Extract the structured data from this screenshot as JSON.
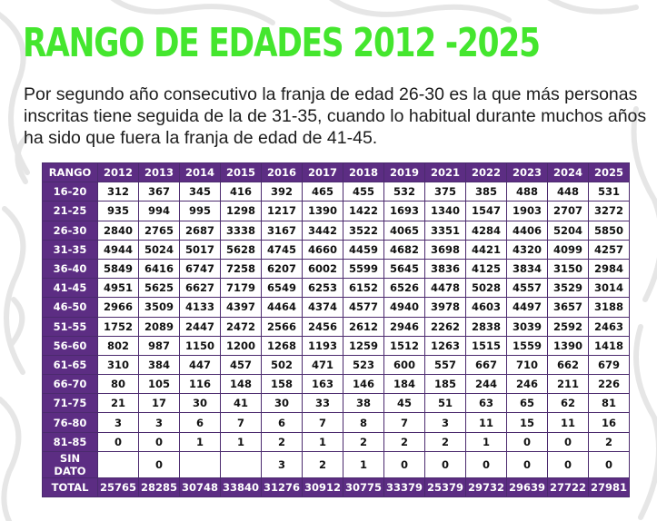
{
  "title": "RANGO DE EDADES 2012 -2025",
  "intro_lines": [
    "Por segundo año consecutivo la franja de edad 26-30 es la que más personas",
    "inscritas tiene seguida de la de 31-35, cuando lo habitual durante muchos años",
    "ha sido que fuera la franja de edad de 41-45."
  ],
  "colors": {
    "title": "#44e62e",
    "table_header": "#5c2d83"
  },
  "table": {
    "corner_label": "RANGO",
    "years": [
      "2012",
      "2013",
      "2014",
      "2015",
      "2016",
      "2017",
      "2018",
      "2019",
      "2021",
      "2022",
      "2023",
      "2024",
      "2025"
    ],
    "rows": [
      {
        "label": "16-20",
        "values": [
          "312",
          "367",
          "345",
          "416",
          "392",
          "465",
          "455",
          "532",
          "375",
          "385",
          "488",
          "448",
          "531"
        ]
      },
      {
        "label": "21-25",
        "values": [
          "935",
          "994",
          "995",
          "1298",
          "1217",
          "1390",
          "1422",
          "1693",
          "1340",
          "1547",
          "1903",
          "2707",
          "3272"
        ]
      },
      {
        "label": "26-30",
        "values": [
          "2840",
          "2765",
          "2687",
          "3338",
          "3167",
          "3442",
          "3522",
          "4065",
          "3351",
          "4284",
          "4406",
          "5204",
          "5850"
        ]
      },
      {
        "label": "31-35",
        "values": [
          "4944",
          "5024",
          "5017",
          "5628",
          "4745",
          "4660",
          "4459",
          "4682",
          "3698",
          "4421",
          "4320",
          "4099",
          "4257"
        ]
      },
      {
        "label": "36-40",
        "values": [
          "5849",
          "6416",
          "6747",
          "7258",
          "6207",
          "6002",
          "5599",
          "5645",
          "3836",
          "4125",
          "3834",
          "3150",
          "2984"
        ]
      },
      {
        "label": "41-45",
        "values": [
          "4951",
          "5625",
          "6627",
          "7179",
          "6549",
          "6253",
          "6152",
          "6526",
          "4478",
          "5028",
          "4557",
          "3529",
          "3014"
        ]
      },
      {
        "label": "46-50",
        "values": [
          "2966",
          "3509",
          "4133",
          "4397",
          "4464",
          "4374",
          "4577",
          "4940",
          "3978",
          "4603",
          "4497",
          "3657",
          "3188"
        ]
      },
      {
        "label": "51-55",
        "values": [
          "1752",
          "2089",
          "2447",
          "2472",
          "2566",
          "2456",
          "2612",
          "2946",
          "2262",
          "2838",
          "3039",
          "2592",
          "2463"
        ]
      },
      {
        "label": "56-60",
        "values": [
          "802",
          "987",
          "1150",
          "1200",
          "1268",
          "1193",
          "1259",
          "1512",
          "1263",
          "1515",
          "1559",
          "1390",
          "1418"
        ]
      },
      {
        "label": "61-65",
        "values": [
          "310",
          "384",
          "447",
          "457",
          "502",
          "471",
          "523",
          "600",
          "557",
          "667",
          "710",
          "662",
          "679"
        ]
      },
      {
        "label": "66-70",
        "values": [
          "80",
          "105",
          "116",
          "148",
          "158",
          "163",
          "146",
          "184",
          "185",
          "244",
          "246",
          "211",
          "226"
        ]
      },
      {
        "label": "71-75",
        "values": [
          "21",
          "17",
          "30",
          "41",
          "30",
          "33",
          "38",
          "45",
          "51",
          "63",
          "65",
          "62",
          "81"
        ]
      },
      {
        "label": "76-80",
        "values": [
          "3",
          "3",
          "6",
          "7",
          "6",
          "7",
          "8",
          "7",
          "3",
          "11",
          "15",
          "11",
          "16"
        ]
      },
      {
        "label": "81-85",
        "values": [
          "0",
          "0",
          "1",
          "1",
          "2",
          "1",
          "2",
          "2",
          "2",
          "1",
          "0",
          "0",
          "2"
        ]
      },
      {
        "label": "SIN DATO",
        "values": [
          "",
          "0",
          "",
          "",
          "3",
          "2",
          "1",
          "0",
          "0",
          "0",
          "0",
          "0",
          "0"
        ]
      }
    ],
    "total": {
      "label": "TOTAL",
      "values": [
        "25765",
        "28285",
        "30748",
        "33840",
        "31276",
        "30912",
        "30775",
        "33379",
        "25379",
        "29732",
        "29639",
        "27722",
        "27981"
      ]
    }
  }
}
